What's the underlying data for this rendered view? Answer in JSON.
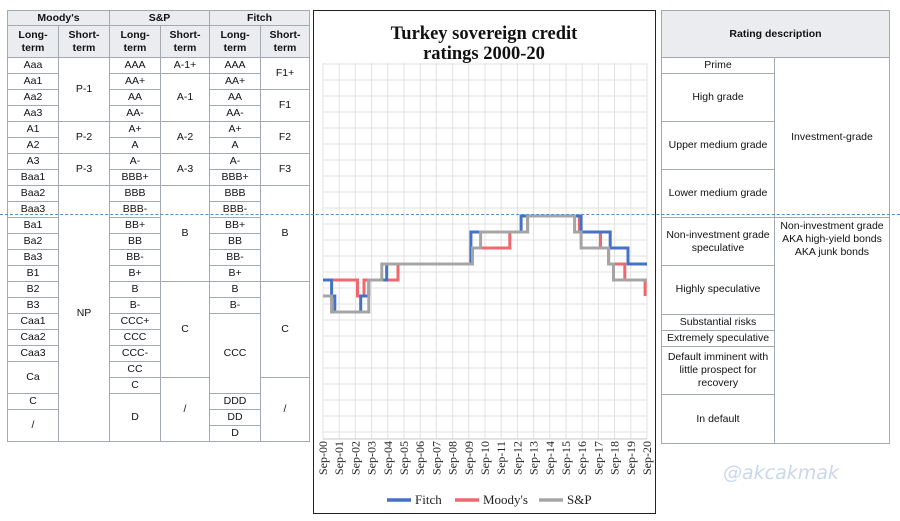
{
  "left_table": {
    "agencies": [
      "Moody's",
      "S&P",
      "Fitch"
    ],
    "sub_long": "Long-term",
    "sub_short": "Short-term",
    "moodys_long": [
      "Aaa",
      "Aa1",
      "Aa2",
      "Aa3",
      "A1",
      "A2",
      "A3",
      "Baa1",
      "Baa2",
      "Baa3",
      "Ba1",
      "Ba2",
      "Ba3",
      "B1",
      "B2",
      "B3",
      "Caa1",
      "Caa2",
      "Caa3",
      "Ca",
      "C",
      "/"
    ],
    "moodys_short": [
      "P-1",
      "P-2",
      "P-3",
      "NP"
    ],
    "sp_long": [
      "AAA",
      "AA+",
      "AA",
      "AA-",
      "A+",
      "A",
      "A-",
      "BBB+",
      "BBB",
      "BBB-",
      "BB+",
      "BB",
      "BB-",
      "B+",
      "B",
      "B-",
      "CCC+",
      "CCC",
      "CCC-",
      "CC",
      "C",
      "D"
    ],
    "sp_short": [
      "A-1+",
      "A-1",
      "A-2",
      "A-3",
      "B",
      "C",
      "/"
    ],
    "fitch_long": [
      "AAA",
      "AA+",
      "AA",
      "AA-",
      "A+",
      "A",
      "A-",
      "BBB+",
      "BBB",
      "BBB-",
      "BB+",
      "BB",
      "BB-",
      "B+",
      "B",
      "B-",
      "CCC",
      "DDD",
      "DD",
      "D"
    ],
    "fitch_short": [
      "F1+",
      "F1",
      "F2",
      "F3",
      "B",
      "C",
      "/"
    ]
  },
  "right_table": {
    "header": "Rating description",
    "descriptions": [
      "Prime",
      "High grade",
      "Upper medium grade",
      "Lower medium grade",
      "Non-investment grade speculative",
      "Highly speculative",
      "Substantial risks",
      "Extremely speculative",
      "Default imminent with little prospect for recovery",
      "In default"
    ],
    "investment": "Investment-grade",
    "junk": "Non-investment grade AKA high-yield bonds AKA junk bonds"
  },
  "watermark": "@akcakmak",
  "chart_data": {
    "type": "line",
    "title": "Turkey sovereign credit ratings 2000-20",
    "x_labels": [
      "Sep-00",
      "Sep-01",
      "Sep-02",
      "Sep-03",
      "Sep-04",
      "Sep-05",
      "Sep-06",
      "Sep-07",
      "Sep-08",
      "Sep-09",
      "Sep-10",
      "Sep-11",
      "Sep-12",
      "Sep-13",
      "Sep-14",
      "Sep-15",
      "Sep-16",
      "Sep-17",
      "Sep-18",
      "Sep-19",
      "Sep-20"
    ],
    "x_range": [
      2000.67,
      2020.67
    ],
    "y_scale": "rating notches from AAA (Aaa) down to D",
    "grid": true,
    "legend_position": "bottom",
    "series": [
      {
        "name": "Fitch",
        "color": "#4472c4",
        "points": [
          [
            2000.67,
            "B+"
          ],
          [
            2001.2,
            "B"
          ],
          [
            2001.4,
            "B-"
          ],
          [
            2003.0,
            "B"
          ],
          [
            2003.5,
            "B+"
          ],
          [
            2004.6,
            "BB-"
          ],
          [
            2009.8,
            "BB+"
          ],
          [
            2012.9,
            "BBB-"
          ],
          [
            2016.6,
            "BB+"
          ],
          [
            2018.4,
            "BB"
          ],
          [
            2019.5,
            "BB-"
          ],
          [
            2020.67,
            "BB-"
          ]
        ]
      },
      {
        "name": "Moody's",
        "color": "#f0686e",
        "points": [
          [
            2000.67,
            "B1"
          ],
          [
            2002.8,
            "B2"
          ],
          [
            2003.2,
            "B1"
          ],
          [
            2005.3,
            "Ba3"
          ],
          [
            2009.8,
            "Ba2"
          ],
          [
            2012.2,
            "Ba1"
          ],
          [
            2013.3,
            "Baa3"
          ],
          [
            2016.5,
            "Ba1"
          ],
          [
            2017.8,
            "Ba2"
          ],
          [
            2018.3,
            "Ba3"
          ],
          [
            2019.3,
            "B1"
          ],
          [
            2020.45,
            "B1"
          ],
          [
            2020.55,
            "B2"
          ]
        ]
      },
      {
        "name": "S&P",
        "color": "#a5a5a5",
        "points": [
          [
            2000.67,
            "B"
          ],
          [
            2001.2,
            "B-"
          ],
          [
            2003.5,
            "B+"
          ],
          [
            2004.3,
            "BB-"
          ],
          [
            2009.9,
            "BB"
          ],
          [
            2010.4,
            "BB+"
          ],
          [
            2012.3,
            "BB+"
          ],
          [
            2013.3,
            "BBB-"
          ],
          [
            2016.2,
            "BB+"
          ],
          [
            2016.6,
            "BB"
          ],
          [
            2018.3,
            "BB-"
          ],
          [
            2018.6,
            "B+"
          ],
          [
            2020.67,
            "B+"
          ]
        ]
      }
    ]
  }
}
